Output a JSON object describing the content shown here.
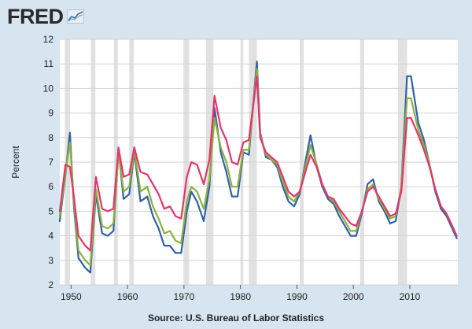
{
  "logo": {
    "text": "FRED",
    "icon": "fred-chart-icon"
  },
  "source": "Source: U.S. Bureau of Labor Statistics",
  "colors": {
    "background": "#d6e5f0",
    "plot": "#ffffff",
    "grid": "#d2d2d2",
    "recession": "#e1e1e1",
    "blue": "#3060a8",
    "green": "#8ab13c",
    "pink": "#e8336b"
  },
  "chart_data": {
    "type": "line",
    "title": "",
    "xlabel": "",
    "ylabel": "Percent",
    "xlim": [
      1948,
      2018.5
    ],
    "ylim": [
      2,
      12
    ],
    "yticks": [
      2,
      3,
      4,
      5,
      6,
      7,
      8,
      9,
      10,
      11,
      12
    ],
    "xticks": [
      1950,
      1960,
      1970,
      1980,
      1990,
      2000,
      2010
    ],
    "grid": true,
    "legend": "none",
    "recessions": [
      [
        1948.9,
        1949.8
      ],
      [
        1953.5,
        1954.3
      ],
      [
        1957.6,
        1958.3
      ],
      [
        1960.3,
        1961.1
      ],
      [
        1969.9,
        1970.9
      ],
      [
        1973.9,
        1975.2
      ],
      [
        1980.0,
        1980.5
      ],
      [
        1981.5,
        1982.9
      ],
      [
        1990.5,
        1991.2
      ],
      [
        2001.2,
        2001.9
      ],
      [
        2007.9,
        2009.5
      ]
    ],
    "series": [
      {
        "name": "blue",
        "x": [
          1948,
          1949,
          1949.8,
          1950.5,
          1951.3,
          1952.5,
          1953.4,
          1954.4,
          1955.5,
          1956.5,
          1957.5,
          1958.4,
          1959.3,
          1960.3,
          1961.2,
          1962.3,
          1963.5,
          1964.5,
          1965.5,
          1966.5,
          1967.5,
          1968.5,
          1969.5,
          1970.5,
          1971.3,
          1972.3,
          1973.5,
          1974.5,
          1975.4,
          1976.5,
          1977.5,
          1978.5,
          1979.5,
          1980.5,
          1981.5,
          1982.9,
          1983.5,
          1984.5,
          1985.5,
          1986.5,
          1987.5,
          1988.5,
          1989.5,
          1990.5,
          1991.5,
          1992.4,
          1993.5,
          1994.5,
          1995.5,
          1996.5,
          1997.5,
          1998.5,
          1999.5,
          2000.5,
          2001.5,
          2002.5,
          2003.5,
          2004.5,
          2005.5,
          2006.5,
          2007.5,
          2008.5,
          2009.5,
          2010.2,
          2011.5,
          2012.5,
          2013.5,
          2014.5,
          2015.5,
          2016.5,
          2017.5,
          2018.3
        ],
        "values": [
          4.6,
          6.5,
          8.2,
          5.2,
          3.1,
          2.7,
          2.5,
          5.7,
          4.1,
          4.0,
          4.2,
          7.5,
          5.5,
          5.7,
          7.4,
          5.4,
          5.6,
          4.8,
          4.3,
          3.6,
          3.6,
          3.3,
          3.3,
          5.0,
          5.8,
          5.4,
          4.6,
          6.0,
          9.2,
          7.4,
          6.6,
          5.6,
          5.6,
          7.4,
          7.3,
          11.1,
          8.2,
          7.2,
          7.1,
          6.8,
          6.0,
          5.4,
          5.2,
          5.7,
          7.0,
          8.1,
          6.8,
          6.0,
          5.5,
          5.3,
          4.8,
          4.4,
          4.0,
          4.0,
          4.9,
          6.1,
          6.3,
          5.4,
          5.0,
          4.5,
          4.6,
          6.0,
          10.5,
          10.5,
          8.6,
          7.9,
          6.9,
          5.8,
          5.1,
          4.8,
          4.3,
          3.9
        ]
      },
      {
        "name": "green",
        "x": [
          1948,
          1949,
          1949.8,
          1950.5,
          1951.3,
          1952.5,
          1953.4,
          1954.4,
          1955.5,
          1956.5,
          1957.5,
          1958.4,
          1959.3,
          1960.3,
          1961.2,
          1962.3,
          1963.5,
          1964.5,
          1965.5,
          1966.5,
          1967.5,
          1968.5,
          1969.5,
          1970.5,
          1971.3,
          1972.3,
          1973.5,
          1974.5,
          1975.4,
          1976.5,
          1977.5,
          1978.5,
          1979.5,
          1980.5,
          1981.5,
          1982.9,
          1983.5,
          1984.5,
          1985.5,
          1986.5,
          1987.5,
          1988.5,
          1989.5,
          1990.5,
          1991.5,
          1992.4,
          1993.5,
          1994.5,
          1995.5,
          1996.5,
          1997.5,
          1998.5,
          1999.5,
          2000.5,
          2001.5,
          2002.5,
          2003.5,
          2004.5,
          2005.5,
          2006.5,
          2007.5,
          2008.5,
          2009.5,
          2010.2,
          2011.5,
          2012.5,
          2013.5,
          2014.5,
          2015.5,
          2016.5,
          2017.5,
          2018.3
        ],
        "values": [
          4.8,
          6.6,
          7.8,
          5.4,
          3.4,
          3.0,
          2.8,
          5.9,
          4.4,
          4.3,
          4.5,
          7.4,
          5.8,
          6.0,
          7.5,
          5.8,
          6.0,
          5.2,
          4.7,
          4.1,
          4.2,
          3.8,
          3.7,
          5.4,
          6.0,
          5.8,
          5.1,
          6.3,
          8.8,
          7.6,
          7.0,
          6.0,
          6.0,
          7.5,
          7.5,
          10.8,
          8.1,
          7.3,
          7.1,
          6.9,
          6.2,
          5.6,
          5.4,
          5.8,
          6.8,
          7.7,
          6.9,
          6.1,
          5.6,
          5.4,
          5.0,
          4.6,
          4.2,
          4.2,
          5.0,
          5.9,
          6.1,
          5.5,
          5.1,
          4.7,
          4.8,
          6.0,
          9.6,
          9.6,
          8.3,
          7.7,
          6.9,
          5.9,
          5.2,
          4.9,
          4.4,
          4.0
        ]
      },
      {
        "name": "pink",
        "x": [
          1948,
          1949,
          1949.8,
          1950.5,
          1951.3,
          1952.5,
          1953.4,
          1954.4,
          1955.5,
          1956.5,
          1957.5,
          1958.4,
          1959.3,
          1960.3,
          1961.2,
          1962.3,
          1963.5,
          1964.5,
          1965.5,
          1966.5,
          1967.5,
          1968.5,
          1969.5,
          1970.5,
          1971.3,
          1972.3,
          1973.5,
          1974.5,
          1975.4,
          1976.5,
          1977.5,
          1978.5,
          1979.5,
          1980.5,
          1981.5,
          1982.9,
          1983.5,
          1984.5,
          1985.5,
          1986.5,
          1987.5,
          1988.5,
          1989.5,
          1990.5,
          1991.5,
          1992.4,
          1993.5,
          1994.5,
          1995.5,
          1996.5,
          1997.5,
          1998.5,
          1999.5,
          2000.5,
          2001.5,
          2002.5,
          2003.5,
          2004.5,
          2005.5,
          2006.5,
          2007.5,
          2008.5,
          2009.5,
          2010.2,
          2011.5,
          2012.5,
          2013.5,
          2014.5,
          2015.5,
          2016.5,
          2017.5,
          2018.3
        ],
        "values": [
          5.0,
          6.9,
          6.8,
          5.6,
          4.0,
          3.6,
          3.4,
          6.4,
          5.1,
          5.0,
          5.1,
          7.6,
          6.4,
          6.5,
          7.6,
          6.6,
          6.5,
          6.1,
          5.7,
          5.1,
          5.2,
          4.8,
          4.7,
          6.4,
          7.0,
          6.9,
          6.1,
          7.1,
          9.7,
          8.4,
          7.9,
          7.0,
          6.9,
          7.8,
          7.9,
          10.5,
          8.0,
          7.4,
          7.2,
          7.0,
          6.4,
          5.8,
          5.6,
          5.8,
          6.6,
          7.3,
          6.8,
          6.1,
          5.6,
          5.5,
          5.1,
          4.8,
          4.5,
          4.4,
          5.0,
          5.8,
          6.0,
          5.6,
          5.2,
          4.8,
          4.9,
          5.8,
          8.8,
          8.8,
          8.1,
          7.5,
          6.8,
          5.9,
          5.2,
          4.9,
          4.4,
          4.0
        ]
      }
    ]
  }
}
